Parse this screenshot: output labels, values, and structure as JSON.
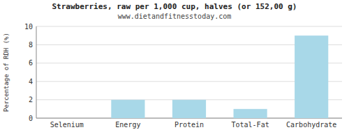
{
  "chart_data": {
    "type": "bar",
    "title": "Strawberries, raw per 1,000 cup, halves (or 152,00 g)",
    "subtitle": "www.dietandfitnesstoday.com",
    "categories": [
      "Selenium",
      "Energy",
      "Protein",
      "Total-Fat",
      "Carbohydrate"
    ],
    "values": [
      0.0,
      2.0,
      2.0,
      1.0,
      9.0
    ],
    "color": "#a8d8e8",
    "y_label": "Percentage of RDH (%)",
    "ylim": [
      0,
      10
    ],
    "yticks": [
      0,
      2,
      4,
      6,
      8,
      10
    ],
    "grid": true
  }
}
